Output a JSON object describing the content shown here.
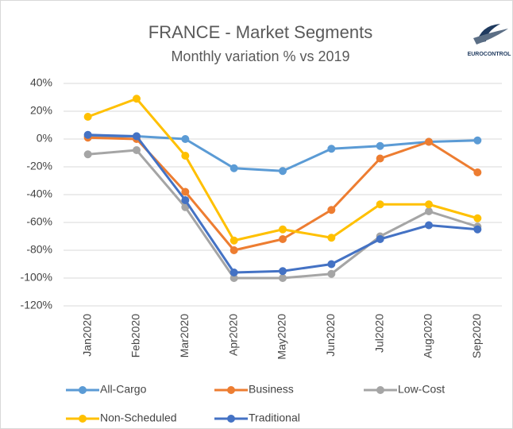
{
  "chart_data": {
    "type": "line",
    "title": "FRANCE - Market Segments",
    "subtitle": "Monthly variation % vs 2019",
    "logo_text": "EUROCONTROL",
    "categories": [
      "Jan2020",
      "Feb2020",
      "Mar2020",
      "Apr2020",
      "May2020",
      "Jun2020",
      "Jul2020",
      "Aug2020",
      "Sep2020"
    ],
    "series": [
      {
        "name": "All-Cargo",
        "color": "#5b9bd5",
        "values": [
          2,
          2,
          0,
          -21,
          -23,
          -7,
          -5,
          -2,
          -1
        ]
      },
      {
        "name": "Business",
        "color": "#ed7d31",
        "values": [
          1,
          0,
          -38,
          -80,
          -72,
          -51,
          -14,
          -2,
          -24
        ]
      },
      {
        "name": "Low-Cost",
        "color": "#a5a5a5",
        "values": [
          -11,
          -8,
          -49,
          -100,
          -100,
          -97,
          -70,
          -52,
          -63
        ]
      },
      {
        "name": "Non-Scheduled",
        "color": "#ffc000",
        "values": [
          16,
          29,
          -12,
          -73,
          -65,
          -71,
          -47,
          -47,
          -57
        ]
      },
      {
        "name": "Traditional",
        "color": "#4472c4",
        "values": [
          3,
          2,
          -44,
          -96,
          -95,
          -90,
          -72,
          -62,
          -65
        ]
      }
    ],
    "ylim": [
      -120,
      40
    ],
    "yticks": [
      {
        "value": -120,
        "label": "-120%"
      },
      {
        "value": -100,
        "label": "-100%"
      },
      {
        "value": -80,
        "label": "-80%"
      },
      {
        "value": -60,
        "label": "-60%"
      },
      {
        "value": -40,
        "label": "-40%"
      },
      {
        "value": -20,
        "label": "-20%"
      },
      {
        "value": 0,
        "label": "0%"
      },
      {
        "value": 20,
        "label": "20%"
      },
      {
        "value": 40,
        "label": "40%"
      }
    ],
    "grid": true
  }
}
